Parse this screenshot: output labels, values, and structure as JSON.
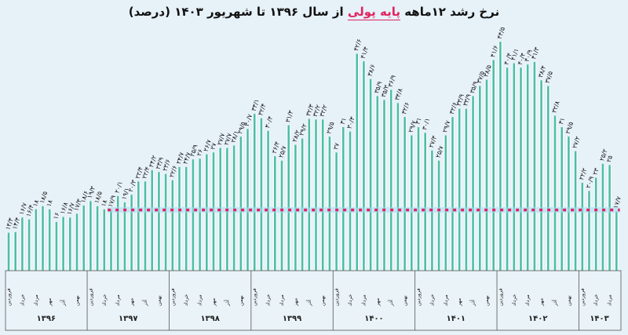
{
  "title": {
    "part1": "نرخ رشد ۱۲ماهه",
    "highlight": "پایه پولی",
    "part2": "از سال ۱۳۹۶ تا شهریور ۱۴۰۳ (درصد)"
  },
  "chart_data": {
    "type": "bar",
    "title": "نرخ رشد ۱۲ماهه پایه پولی از سال ۱۳۹۶ تا شهریور ۱۴۰۳ (درصد)",
    "xlabel": "",
    "ylabel": "درصد",
    "ylim": [
      8.3,
      48
    ],
    "grid": false,
    "years": [
      "۱۳۹۶",
      "۱۳۹۷",
      "۱۳۹۸",
      "۱۳۹۹",
      "۱۴۰۰",
      "۱۴۰۱",
      "۱۴۰۲",
      "۱۴۰۳"
    ],
    "months_per_year": [
      12,
      12,
      12,
      12,
      12,
      12,
      12,
      6
    ],
    "month_tick_labels": [
      "فروردین",
      "خرداد",
      "مرداد",
      "مهر",
      "آذر",
      "بهمن"
    ],
    "values": [
      14.3,
      14.4,
      16.7,
      16.4,
      18.0,
      18.5,
      18.0,
      16.0,
      16.8,
      16.7,
      17.3,
      18.6,
      19.3,
      18.5,
      18.0,
      17.9,
      20.1,
      19.1,
      20.3,
      22.4,
      22.4,
      24.2,
      23.9,
      23.6,
      22.6,
      24.7,
      24.7,
      25.9,
      26.0,
      26.7,
      27.0,
      27.7,
      27.7,
      28.1,
      29.5,
      30.7,
      33.1,
      32.4,
      30.4,
      26.4,
      25.7,
      31.3,
      28.2,
      29.2,
      32.3,
      32.2,
      32.2,
      29.5,
      27.0,
      31.0,
      30.3,
      42.6,
      41.4,
      38.6,
      35.9,
      35.3,
      36.9,
      34.8,
      32.6,
      29.7,
      31.0,
      30.1,
      27.3,
      25.7,
      29.7,
      32.6,
      33.9,
      33.9,
      35.9,
      37.5,
      38.5,
      41.6,
      44.5,
      40.4,
      41.1,
      40.4,
      40.9,
      41.3,
      38.4,
      37.5,
      32.8,
      31.0,
      29.5,
      27.2,
      22.2,
      20.9,
      23.0,
      25.2,
      25.0,
      17.7
    ],
    "reference_line": 17.9,
    "colors": {
      "bar": "#4dbfa3",
      "bar_glow": "#ffffff",
      "reference_line": "#e0245e",
      "highlight": "#e0245e"
    }
  }
}
